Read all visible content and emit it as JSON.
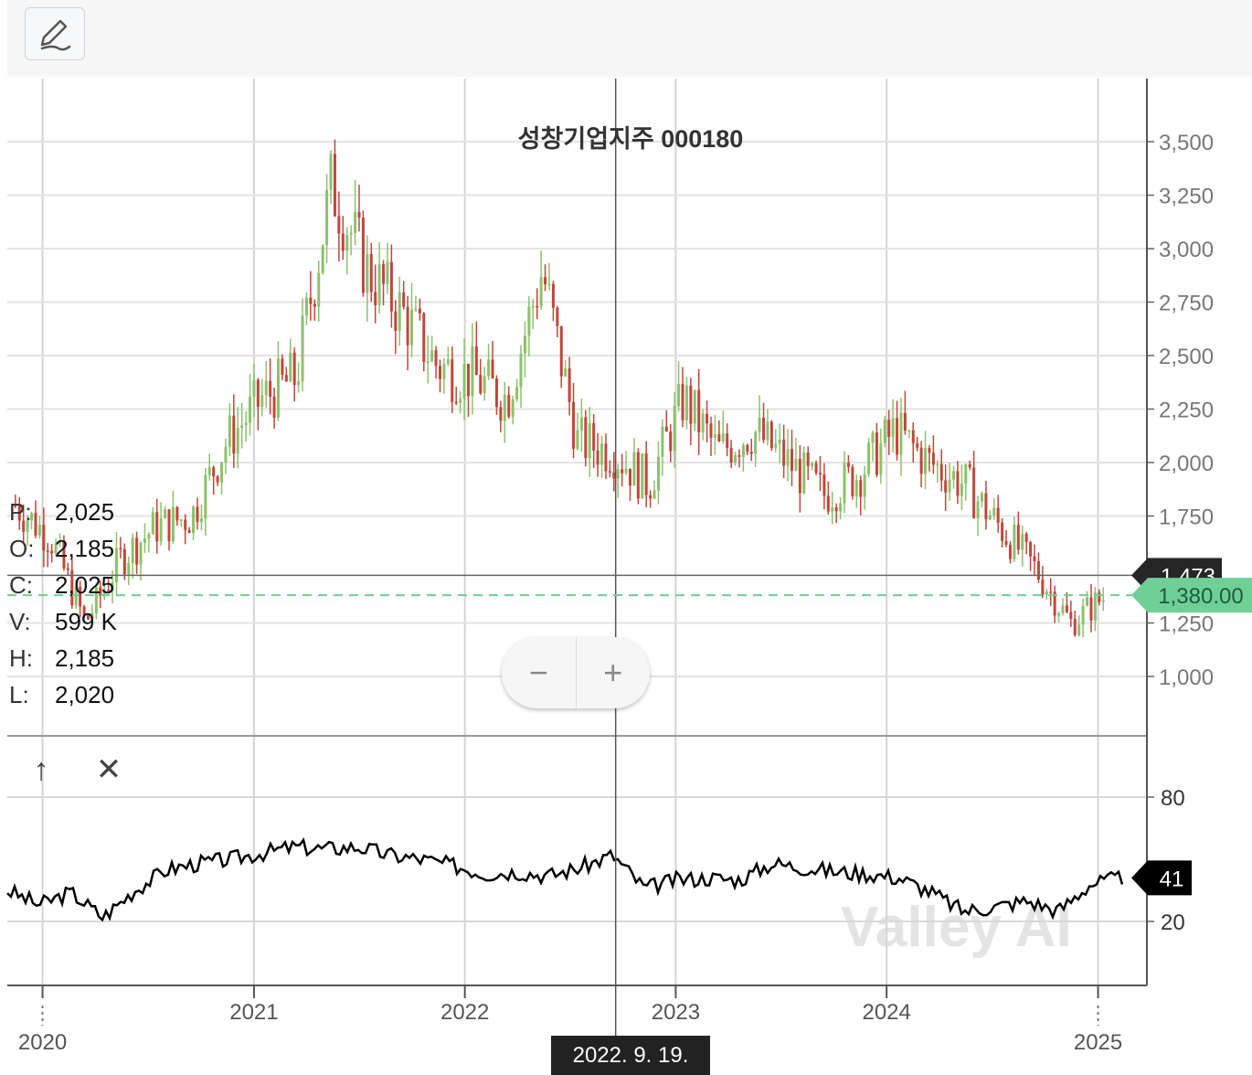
{
  "toolbar": {
    "edit_icon": "pen-icon"
  },
  "title": "성창기업지주 000180",
  "ohlc": [
    {
      "key": "P:",
      "value": "2,025"
    },
    {
      "key": "O:",
      "value": "2,185"
    },
    {
      "key": "C:",
      "value": "2,025"
    },
    {
      "key": "V:",
      "value": "599 K"
    },
    {
      "key": "H:",
      "value": "2,185"
    },
    {
      "key": "L:",
      "value": "2,020"
    }
  ],
  "zoom": {
    "minus": "−",
    "plus": "+"
  },
  "indicator_controls": {
    "up": "↑",
    "close": "✕"
  },
  "crosshair_date": "2022. 9. 19.",
  "price_labels": {
    "last": "1,473",
    "current": "1,380.00"
  },
  "indicator_label": "41",
  "watermark": "Valley AI",
  "colors": {
    "up": "#8dc16d",
    "down": "#c0473b",
    "current_line": "#6fcf97",
    "indicator_line": "#000000"
  },
  "chart_data": {
    "type": "candlestick",
    "title": "성창기업지주 000180",
    "x_ticks_top": [
      "2021",
      "2022",
      "2023",
      "2024"
    ],
    "x_ticks_bottom": [
      "2020",
      "2025"
    ],
    "price_axis": {
      "ticks": [
        "3,500",
        "3,250",
        "3,000",
        "2,750",
        "2,500",
        "2,250",
        "2,000",
        "1,750",
        "1,250",
        "1,000"
      ],
      "ylim": [
        920,
        3650
      ]
    },
    "series": [
      {
        "date": "2019-11",
        "close": 1800
      },
      {
        "date": "2020-01",
        "close": 1650
      },
      {
        "date": "2020-03",
        "close": 1250
      },
      {
        "date": "2020-05",
        "close": 1550
      },
      {
        "date": "2020-07",
        "close": 1700
      },
      {
        "date": "2020-09",
        "close": 1750
      },
      {
        "date": "2020-11",
        "close": 2100
      },
      {
        "date": "2021-01",
        "close": 2300
      },
      {
        "date": "2021-03",
        "close": 2400
      },
      {
        "date": "2021-05",
        "close": 3300
      },
      {
        "date": "2021-07",
        "close": 2900
      },
      {
        "date": "2021-09",
        "close": 2700
      },
      {
        "date": "2021-11",
        "close": 2450
      },
      {
        "date": "2022-01",
        "close": 2400
      },
      {
        "date": "2022-03",
        "close": 2300
      },
      {
        "date": "2022-05",
        "close": 2900
      },
      {
        "date": "2022-07",
        "close": 2100
      },
      {
        "date": "2022-09",
        "close": 2050
      },
      {
        "date": "2022-11",
        "close": 1900
      },
      {
        "date": "2023-01",
        "close": 2300
      },
      {
        "date": "2023-03",
        "close": 2050
      },
      {
        "date": "2023-05",
        "close": 2150
      },
      {
        "date": "2023-07",
        "close": 2000
      },
      {
        "date": "2023-09",
        "close": 1850
      },
      {
        "date": "2023-11",
        "close": 1950
      },
      {
        "date": "2024-01",
        "close": 2150
      },
      {
        "date": "2024-03",
        "close": 2000
      },
      {
        "date": "2024-05",
        "close": 1900
      },
      {
        "date": "2024-07",
        "close": 1700
      },
      {
        "date": "2024-09",
        "close": 1500
      },
      {
        "date": "2024-11",
        "close": 1250
      },
      {
        "date": "2025-01",
        "close": 1380
      }
    ],
    "indicator": {
      "ticks": [
        "80",
        "20"
      ],
      "ylim": [
        0,
        85
      ],
      "values": [
        35,
        28,
        34,
        22,
        35,
        45,
        48,
        50,
        53,
        56,
        55,
        56,
        52,
        50,
        47,
        43,
        44,
        42,
        46,
        52,
        36,
        40,
        41,
        40,
        48,
        46,
        44,
        43,
        41,
        34,
        25,
        27,
        30,
        25,
        38,
        41
      ]
    }
  }
}
